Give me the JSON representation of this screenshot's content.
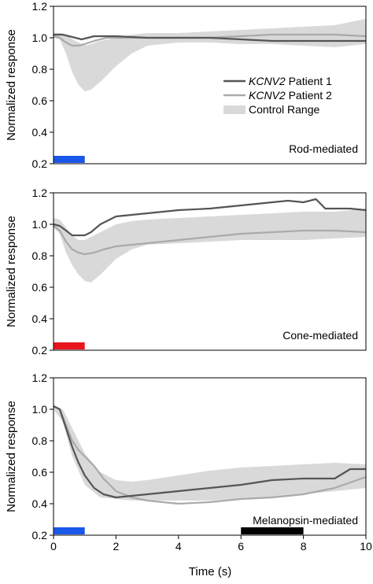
{
  "ylabel": "Normalized response",
  "xlabel": "Time (s)",
  "x_ticks": [
    0,
    2,
    4,
    6,
    8,
    10
  ],
  "y_ticks": [
    0.2,
    0.4,
    0.6,
    0.8,
    1.0,
    1.2
  ],
  "colors": {
    "patient1": "#555555",
    "patient2": "#aaaaaa",
    "control": "#d9d9d9",
    "blue_stimulus": "#1a56e8",
    "red_stimulus": "#e8141e",
    "black_stimulus": "#000000"
  },
  "legend": {
    "patient1_italic": "KCNV2",
    "patient1_rest": " Patient 1",
    "patient2_italic": "KCNV2",
    "patient2_rest": " Patient 2",
    "control": "Control Range"
  },
  "chart_data": [
    {
      "type": "line",
      "panel_label": "Rod-mediated",
      "xlim": [
        0,
        10
      ],
      "ylim": [
        0.2,
        1.2
      ],
      "stimulus": {
        "start": 0,
        "end": 1,
        "color": "#1a56e8"
      },
      "control_band": {
        "x": [
          0,
          0.2,
          0.4,
          0.6,
          0.8,
          1.0,
          1.2,
          1.5,
          2.0,
          2.5,
          3.0,
          4.0,
          5.0,
          6.0,
          7.0,
          8.0,
          9.0,
          10.0
        ],
        "upper": [
          1.03,
          1.03,
          1.02,
          0.99,
          0.97,
          0.95,
          0.96,
          0.98,
          1.0,
          1.02,
          1.03,
          1.03,
          1.04,
          1.05,
          1.06,
          1.07,
          1.08,
          1.12
        ],
        "lower": [
          1.0,
          0.99,
          0.9,
          0.78,
          0.7,
          0.66,
          0.67,
          0.72,
          0.82,
          0.9,
          0.95,
          0.97,
          0.97,
          0.96,
          0.96,
          0.95,
          0.94,
          0.96
        ]
      },
      "series": [
        {
          "name": "KCNV2 Patient 1",
          "x": [
            0,
            0.3,
            0.5,
            0.7,
            0.9,
            1.1,
            1.3,
            1.6,
            2.0,
            3.0,
            4.0,
            5.0,
            6.0,
            7.0,
            8.0,
            9.0,
            10.0
          ],
          "values": [
            1.02,
            1.02,
            1.01,
            1.0,
            0.99,
            1.0,
            1.01,
            1.01,
            1.01,
            1.0,
            1.0,
            1.0,
            0.99,
            0.98,
            0.98,
            0.98,
            0.98
          ]
        },
        {
          "name": "KCNV2 Patient 2",
          "x": [
            0,
            0.2,
            0.4,
            0.6,
            0.8,
            1.0,
            1.3,
            1.7,
            2.0,
            2.5,
            3.0,
            4.0,
            5.0,
            6.0,
            7.0,
            8.0,
            9.0,
            10.0
          ],
          "values": [
            1.01,
            1.0,
            0.97,
            0.95,
            0.95,
            0.96,
            0.98,
            1.0,
            1.0,
            1.0,
            1.0,
            1.0,
            1.0,
            1.01,
            1.02,
            1.02,
            1.02,
            1.01
          ]
        }
      ]
    },
    {
      "type": "line",
      "panel_label": "Cone-mediated",
      "xlim": [
        0,
        10
      ],
      "ylim": [
        0.2,
        1.2
      ],
      "stimulus": {
        "start": 0,
        "end": 1,
        "color": "#e8141e"
      },
      "control_band": {
        "x": [
          0,
          0.2,
          0.4,
          0.6,
          0.8,
          1.0,
          1.2,
          1.5,
          2.0,
          2.5,
          3.0,
          4.0,
          5.0,
          6.0,
          7.0,
          8.0,
          9.0,
          10.0
        ],
        "upper": [
          1.04,
          1.03,
          0.98,
          0.93,
          0.9,
          0.9,
          0.92,
          0.95,
          1.0,
          1.02,
          1.03,
          1.04,
          1.05,
          1.06,
          1.07,
          1.08,
          1.08,
          1.1
        ],
        "lower": [
          0.98,
          0.94,
          0.82,
          0.74,
          0.68,
          0.64,
          0.63,
          0.68,
          0.78,
          0.84,
          0.87,
          0.88,
          0.89,
          0.9,
          0.9,
          0.9,
          0.91,
          0.92
        ]
      },
      "series": [
        {
          "name": "KCNV2 Patient 1",
          "x": [
            0,
            0.2,
            0.4,
            0.6,
            0.8,
            1.0,
            1.2,
            1.5,
            2.0,
            2.5,
            3.0,
            4.0,
            5.0,
            6.0,
            7.0,
            7.5,
            8.0,
            8.4,
            8.7,
            9.0,
            9.5,
            10.0
          ],
          "values": [
            1.0,
            0.99,
            0.96,
            0.93,
            0.93,
            0.93,
            0.95,
            1.0,
            1.05,
            1.06,
            1.07,
            1.09,
            1.1,
            1.12,
            1.14,
            1.15,
            1.14,
            1.16,
            1.1,
            1.1,
            1.1,
            1.09
          ]
        },
        {
          "name": "KCNV2 Patient 2",
          "x": [
            0,
            0.2,
            0.4,
            0.6,
            0.8,
            1.0,
            1.3,
            1.6,
            2.0,
            2.5,
            3.0,
            4.0,
            5.0,
            6.0,
            7.0,
            8.0,
            9.0,
            10.0
          ],
          "values": [
            0.99,
            0.96,
            0.89,
            0.84,
            0.82,
            0.81,
            0.82,
            0.84,
            0.86,
            0.87,
            0.88,
            0.9,
            0.92,
            0.94,
            0.95,
            0.96,
            0.96,
            0.95
          ]
        }
      ]
    },
    {
      "type": "line",
      "panel_label": "Melanopsin-mediated",
      "xlim": [
        0,
        10
      ],
      "ylim": [
        0.2,
        1.2
      ],
      "stimulus": {
        "start": 0,
        "end": 1,
        "color": "#1a56e8"
      },
      "second_stimulus": {
        "start": 6,
        "end": 8,
        "color": "#000000"
      },
      "control_band": {
        "x": [
          0,
          0.3,
          0.6,
          1.0,
          1.5,
          2.0,
          2.5,
          3.0,
          4.0,
          5.0,
          6.0,
          7.0,
          8.0,
          9.0,
          10.0
        ],
        "upper": [
          1.02,
          1.0,
          0.88,
          0.72,
          0.6,
          0.55,
          0.54,
          0.55,
          0.58,
          0.61,
          0.63,
          0.64,
          0.65,
          0.66,
          0.65
        ],
        "lower": [
          1.0,
          0.92,
          0.7,
          0.52,
          0.44,
          0.43,
          0.42,
          0.42,
          0.42,
          0.42,
          0.43,
          0.44,
          0.46,
          0.48,
          0.5
        ]
      },
      "series": [
        {
          "name": "KCNV2 Patient 1",
          "x": [
            0,
            0.2,
            0.4,
            0.6,
            0.8,
            1.0,
            1.3,
            1.6,
            2.0,
            2.5,
            3.0,
            4.0,
            5.0,
            6.0,
            7.0,
            8.0,
            9.0,
            9.5,
            10.0
          ],
          "values": [
            1.02,
            1.0,
            0.88,
            0.76,
            0.66,
            0.58,
            0.5,
            0.46,
            0.44,
            0.45,
            0.46,
            0.48,
            0.5,
            0.52,
            0.55,
            0.56,
            0.56,
            0.62,
            0.62
          ]
        },
        {
          "name": "KCNV2 Patient 2",
          "x": [
            0,
            0.2,
            0.4,
            0.6,
            0.8,
            1.0,
            1.3,
            1.6,
            2.0,
            2.5,
            3.0,
            4.0,
            5.0,
            6.0,
            7.0,
            8.0,
            9.0,
            10.0
          ],
          "values": [
            1.02,
            1.0,
            0.9,
            0.8,
            0.74,
            0.7,
            0.64,
            0.56,
            0.48,
            0.44,
            0.42,
            0.4,
            0.41,
            0.43,
            0.44,
            0.46,
            0.5,
            0.57
          ]
        }
      ]
    }
  ]
}
